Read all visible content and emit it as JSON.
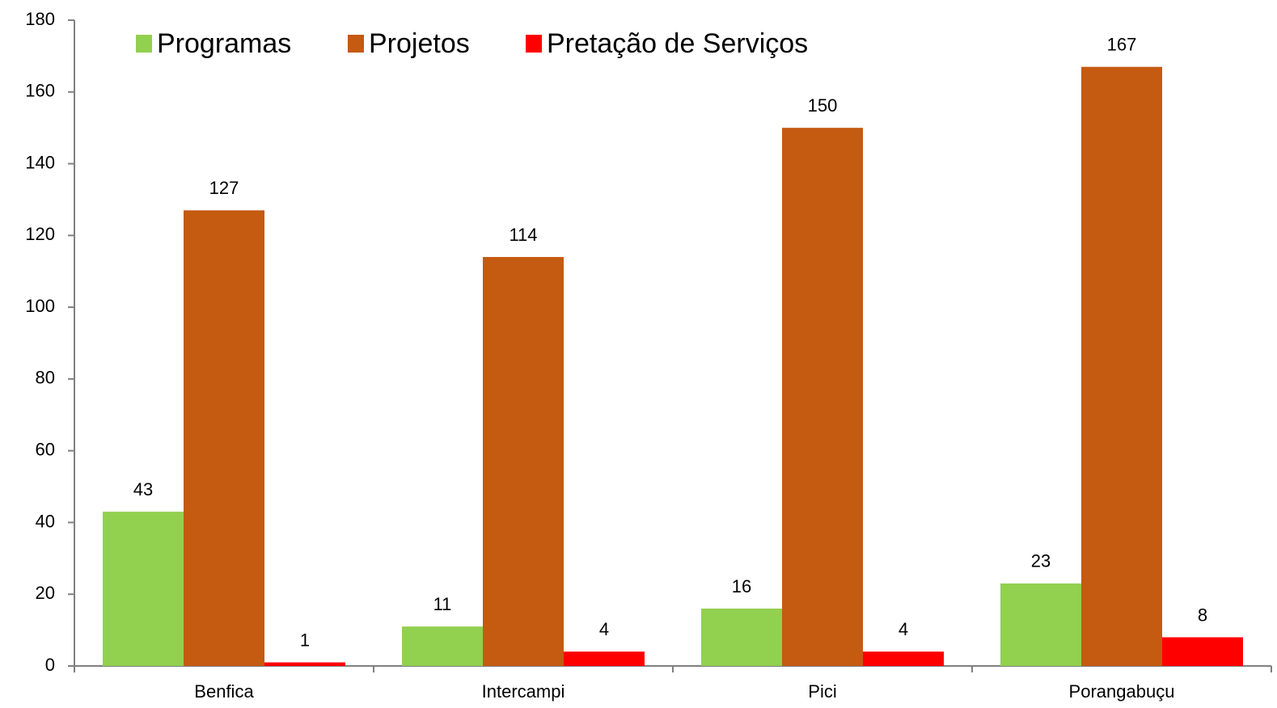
{
  "chart_data": {
    "type": "bar",
    "categories": [
      "Benfica",
      "Intercampi",
      "Pici",
      "Porangabuçu"
    ],
    "series": [
      {
        "name": "Programas",
        "color": "#92d050",
        "values": [
          43,
          11,
          16,
          23
        ]
      },
      {
        "name": "Projetos",
        "color": "#c55a11",
        "values": [
          127,
          114,
          150,
          167
        ]
      },
      {
        "name": "Pretação de Serviços",
        "color": "#ff0000",
        "values": [
          1,
          4,
          4,
          8
        ]
      }
    ],
    "ylim": [
      0,
      180
    ],
    "yticks": [
      0,
      20,
      40,
      60,
      80,
      100,
      120,
      140,
      160,
      180
    ],
    "grid": false,
    "legend": "top"
  }
}
